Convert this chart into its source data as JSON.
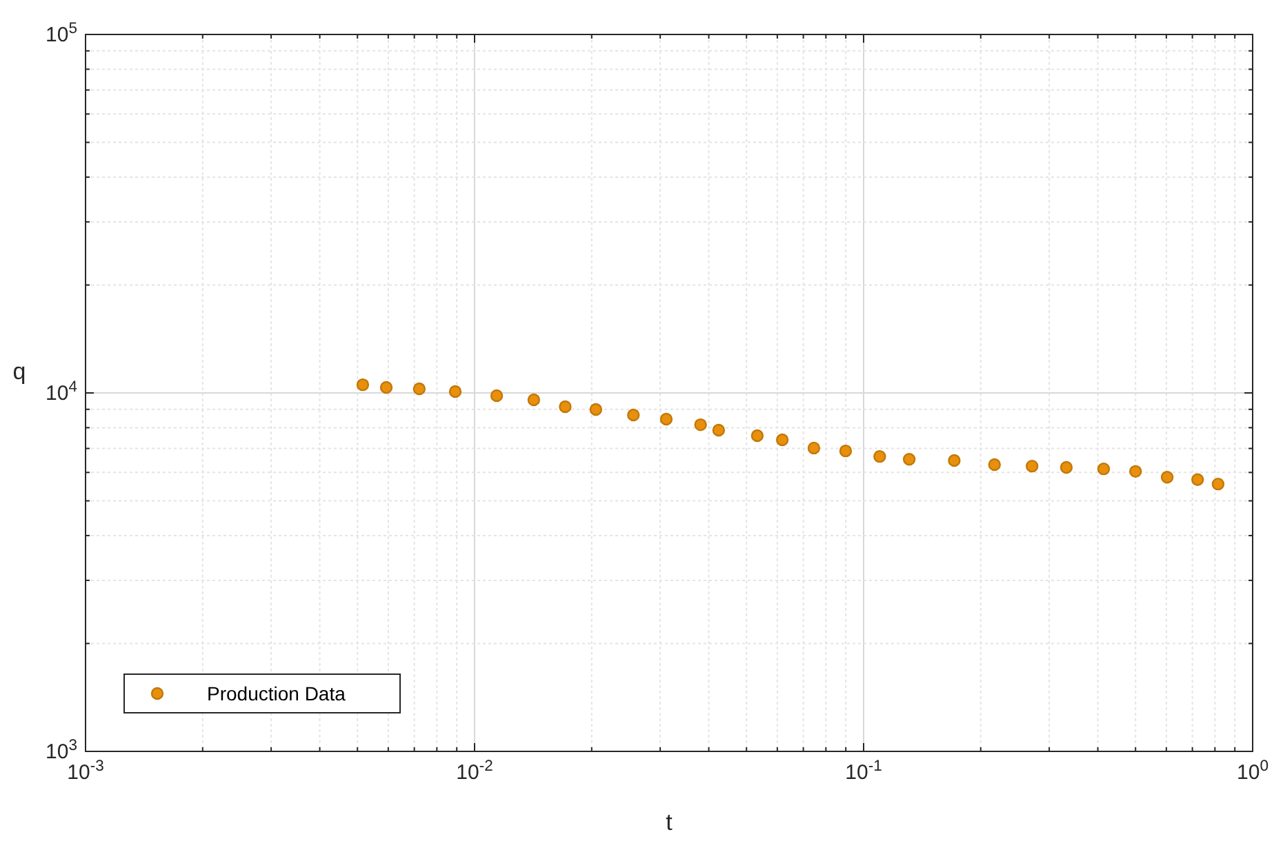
{
  "chart_data": {
    "type": "scatter",
    "xlabel": "t",
    "ylabel": "q",
    "log": "xy",
    "grid": true,
    "legend": "bottom left",
    "marker": "circle",
    "xlim": [
      0.001,
      1
    ],
    "ylim": [
      1000,
      100000
    ],
    "xticks": [
      {
        "value": 0.001,
        "label": "10$^{-3}$"
      },
      {
        "value": 0.002,
        "label": null
      },
      {
        "value": 0.003,
        "label": null
      },
      {
        "value": 0.004,
        "label": null
      },
      {
        "value": 0.005,
        "label": null
      },
      {
        "value": 0.006,
        "label": null
      },
      {
        "value": 0.007,
        "label": null
      },
      {
        "value": 0.008,
        "label": null
      },
      {
        "value": 0.009,
        "label": null
      },
      {
        "value": 0.01,
        "label": "10$^{-2}$"
      },
      {
        "value": 0.02,
        "label": null
      },
      {
        "value": 0.03,
        "label": null
      },
      {
        "value": 0.04,
        "label": null
      },
      {
        "value": 0.05,
        "label": null
      },
      {
        "value": 0.06,
        "label": null
      },
      {
        "value": 0.07,
        "label": null
      },
      {
        "value": 0.08,
        "label": null
      },
      {
        "value": 0.09,
        "label": null
      },
      {
        "value": 0.1,
        "label": "10$^{-1}$"
      },
      {
        "value": 0.2,
        "label": null
      },
      {
        "value": 0.3,
        "label": null
      },
      {
        "value": 0.4,
        "label": null
      },
      {
        "value": 0.5,
        "label": null
      },
      {
        "value": 0.6,
        "label": null
      },
      {
        "value": 0.7,
        "label": null
      },
      {
        "value": 0.8,
        "label": null
      },
      {
        "value": 0.9,
        "label": null
      },
      {
        "value": 1,
        "label": "10$^{0}$"
      }
    ],
    "yticks": [
      {
        "value": 1000,
        "label": "10$^{3}$"
      },
      {
        "value": 2000,
        "label": null
      },
      {
        "value": 3000,
        "label": null
      },
      {
        "value": 4000,
        "label": null
      },
      {
        "value": 5000,
        "label": null
      },
      {
        "value": 6000,
        "label": null
      },
      {
        "value": 7000,
        "label": null
      },
      {
        "value": 8000,
        "label": null
      },
      {
        "value": 9000,
        "label": null
      },
      {
        "value": 10000,
        "label": "10$^{4}$"
      },
      {
        "value": 20000,
        "label": null
      },
      {
        "value": 30000,
        "label": null
      },
      {
        "value": 40000,
        "label": null
      },
      {
        "value": 50000,
        "label": null
      },
      {
        "value": 60000,
        "label": null
      },
      {
        "value": 70000,
        "label": null
      },
      {
        "value": 80000,
        "label": null
      },
      {
        "value": 90000,
        "label": null
      },
      {
        "value": 100000,
        "label": "10$^{5}$"
      }
    ],
    "series": [
      {
        "name": "Production Data",
        "color": "#e8900c",
        "x": [
          0.00516,
          0.00593,
          0.00721,
          0.00892,
          0.0114,
          0.0142,
          0.0171,
          0.0205,
          0.0256,
          0.0311,
          0.0381,
          0.0424,
          0.0533,
          0.0618,
          0.0745,
          0.0899,
          0.11,
          0.131,
          0.171,
          0.217,
          0.271,
          0.332,
          0.414,
          0.5,
          0.603,
          0.722,
          0.815
        ],
        "values": [
          10540,
          10360,
          10270,
          10090,
          9825,
          9568,
          9153,
          8990,
          8680,
          8450,
          8154,
          7875,
          7600,
          7400,
          7020,
          6890,
          6650,
          6530,
          6480,
          6310,
          6250,
          6200,
          6140,
          6040,
          5820,
          5730,
          5570
        ]
      }
    ]
  }
}
